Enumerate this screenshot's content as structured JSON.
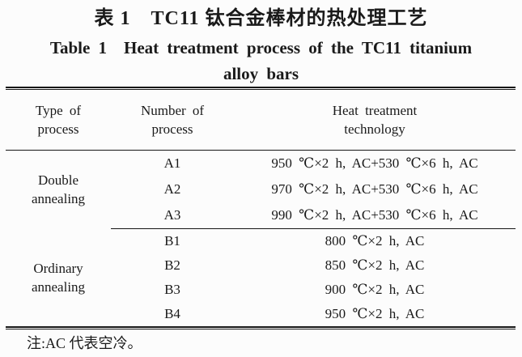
{
  "colors": {
    "ink": "#1a1a1a",
    "background": "#fcfcfc"
  },
  "titles": {
    "zh": "表 1 TC11 钛合金棒材的热处理工艺",
    "en_line1": "Table 1 Heat treatment process of the TC11 titanium",
    "en_line2": "alloy bars"
  },
  "table": {
    "headers": [
      {
        "line1": "Type of",
        "line2": "process"
      },
      {
        "line1": "Number of",
        "line2": "process"
      },
      {
        "line1": "Heat treatment",
        "line2": "technology"
      }
    ],
    "groups": [
      {
        "type": {
          "line1": "Double",
          "line2": "annealing"
        },
        "rows": [
          {
            "number": "A1",
            "technology": "950 ℃×2 h, AC+530 ℃×6 h, AC"
          },
          {
            "number": "A2",
            "technology": "970 ℃×2 h, AC+530 ℃×6 h, AC"
          },
          {
            "number": "A3",
            "technology": "990 ℃×2 h, AC+530 ℃×6 h, AC"
          }
        ]
      },
      {
        "type": {
          "line1": "Ordinary",
          "line2": "annealing"
        },
        "rows": [
          {
            "number": "B1",
            "technology": "800 ℃×2 h, AC"
          },
          {
            "number": "B2",
            "technology": "850 ℃×2 h, AC"
          },
          {
            "number": "B3",
            "technology": "900 ℃×2 h, AC"
          },
          {
            "number": "B4",
            "technology": "950 ℃×2 h, AC"
          }
        ]
      }
    ]
  },
  "footnote": {
    "text": "注:AC 代表空冷。"
  }
}
